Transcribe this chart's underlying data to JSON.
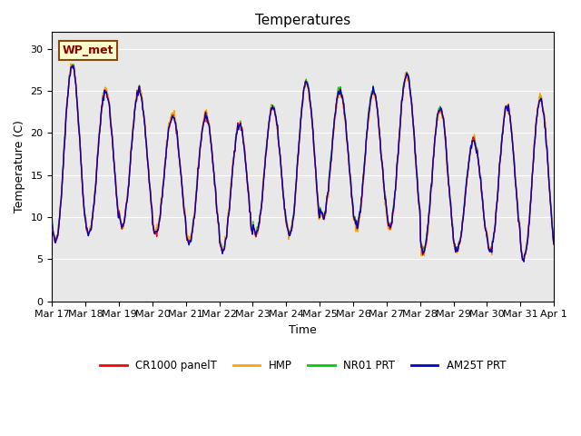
{
  "title": "Temperatures",
  "xlabel": "Time",
  "ylabel": "Temperature (C)",
  "ylim": [
    0,
    32
  ],
  "yticks": [
    0,
    5,
    10,
    15,
    20,
    25,
    30
  ],
  "background_color": "#e8e8e8",
  "fig_background": "#ffffff",
  "annotation_text": "WP_met",
  "annotation_facecolor": "#ffffcc",
  "annotation_edgecolor": "#8b4513",
  "annotation_textcolor": "#8b0000",
  "series": {
    "CR1000 panelT": {
      "color": "#ff0000",
      "zorder": 4
    },
    "HMP": {
      "color": "#ffa500",
      "zorder": 3
    },
    "NR01 PRT": {
      "color": "#00cc00",
      "zorder": 2
    },
    "AM25T PRT": {
      "color": "#0000cc",
      "zorder": 5
    }
  },
  "x_tick_labels": [
    "Mar 17",
    "Mar 18",
    "Mar 19",
    "Mar 20",
    "Mar 21",
    "Mar 22",
    "Mar 23",
    "Mar 24",
    "Mar 25",
    "Mar 26",
    "Mar 27",
    "Mar 28",
    "Mar 29",
    "Mar 30",
    "Mar 31",
    "Apr 1"
  ],
  "n_days": 15,
  "points_per_day": 48,
  "day_peaks": [
    28,
    25,
    25,
    22,
    22,
    21,
    23,
    26,
    25,
    25,
    27,
    23,
    19,
    23,
    24
  ],
  "day_troughs": [
    7,
    8,
    9,
    8,
    7,
    6,
    8,
    8,
    10,
    9,
    9,
    6,
    6,
    6,
    5
  ]
}
